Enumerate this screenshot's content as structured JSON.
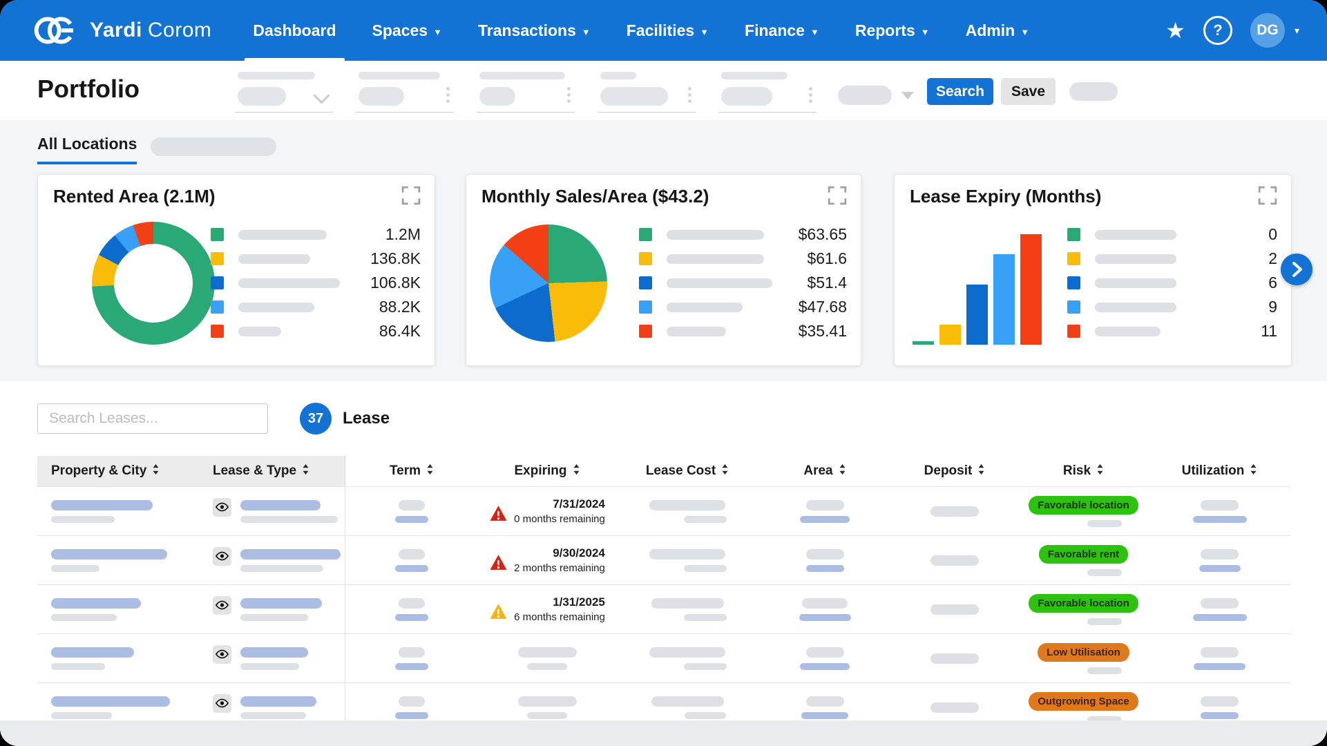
{
  "colors": {
    "brand": "#1273d4",
    "chart_palette": [
      "#2aa876",
      "#fbbc09",
      "#0d6bce",
      "#38a1f5",
      "#f23f16"
    ],
    "badge_green_bg": "#2dc20e",
    "badge_green_text": "#143301",
    "badge_orange_bg": "#e0791b",
    "badge_orange_text": "#402301",
    "warning_red": "#d92111",
    "warning_amber": "#f4b40d"
  },
  "nav": {
    "brand_primary": "Yardi",
    "brand_secondary": "Corom",
    "items": [
      {
        "label": "Dashboard",
        "caret": false,
        "active": true
      },
      {
        "label": "Spaces",
        "caret": true,
        "active": false
      },
      {
        "label": "Transactions",
        "caret": true,
        "active": false
      },
      {
        "label": "Facilities",
        "caret": true,
        "active": false
      },
      {
        "label": "Finance",
        "caret": true,
        "active": false
      },
      {
        "label": "Reports",
        "caret": true,
        "active": false
      },
      {
        "label": "Admin",
        "caret": true,
        "active": false
      }
    ],
    "user_initials": "DG"
  },
  "header": {
    "title": "Portfolio",
    "search_label": "Search",
    "save_label": "Save"
  },
  "tabs": {
    "active_label": "All Locations"
  },
  "cards": [
    {
      "title": "Rented Area (2.1M)"
    },
    {
      "title": "Monthly Sales/Area ($43.2)"
    },
    {
      "title": "Lease Expiry (Months)"
    }
  ],
  "chart_data": [
    {
      "type": "pie",
      "variant": "donut",
      "title": "Rented Area (2.1M)",
      "values": [
        1200000,
        136800,
        106800,
        88200,
        86400
      ],
      "value_labels": [
        "1.2M",
        "136.8K",
        "106.8K",
        "88.2K",
        "86.4K"
      ],
      "colors": [
        "#2aa876",
        "#fbbc09",
        "#0d6bce",
        "#38a1f5",
        "#f23f16"
      ],
      "legend_position": "right"
    },
    {
      "type": "pie",
      "variant": "pie",
      "title": "Monthly Sales/Area ($43.2)",
      "values": [
        63.65,
        61.6,
        51.4,
        47.68,
        35.41
      ],
      "value_labels": [
        "$63.65",
        "$61.6",
        "$51.4",
        "$47.68",
        "$35.41"
      ],
      "colors": [
        "#2aa876",
        "#fbbc09",
        "#0d6bce",
        "#38a1f5",
        "#f23f16"
      ],
      "legend_position": "right"
    },
    {
      "type": "bar",
      "title": "Lease Expiry (Months)",
      "values": [
        0,
        2,
        6,
        9,
        11
      ],
      "value_labels": [
        "0",
        "2",
        "6",
        "9",
        "11"
      ],
      "colors": [
        "#2aa876",
        "#fbbc09",
        "#0d6bce",
        "#38a1f5",
        "#f23f16"
      ],
      "ylim": [
        0,
        11
      ],
      "legend_position": "right"
    }
  ],
  "search": {
    "placeholder": "Search Leases...",
    "count": "37",
    "entity_label": "Lease"
  },
  "table": {
    "columns": [
      "Property & City",
      "Lease & Type",
      "Term",
      "Expiring",
      "Lease Cost",
      "Area",
      "Deposit",
      "Risk",
      "Utilization"
    ],
    "rows": [
      {
        "expiring": {
          "date": "7/31/2024",
          "remaining": "0 months remaining",
          "severity": "critical"
        },
        "risk": {
          "label": "Favorable location",
          "tone": "green"
        }
      },
      {
        "expiring": {
          "date": "9/30/2024",
          "remaining": "2 months remaining",
          "severity": "critical"
        },
        "risk": {
          "label": "Favorable rent",
          "tone": "green"
        }
      },
      {
        "expiring": {
          "date": "1/31/2025",
          "remaining": "6 months remaining",
          "severity": "warning"
        },
        "risk": {
          "label": "Favorable location",
          "tone": "green"
        }
      },
      {
        "expiring": null,
        "risk": {
          "label": "Low Utilisation",
          "tone": "orange"
        }
      },
      {
        "expiring": null,
        "risk": {
          "label": "Outgrowing Space",
          "tone": "orange"
        }
      }
    ]
  }
}
